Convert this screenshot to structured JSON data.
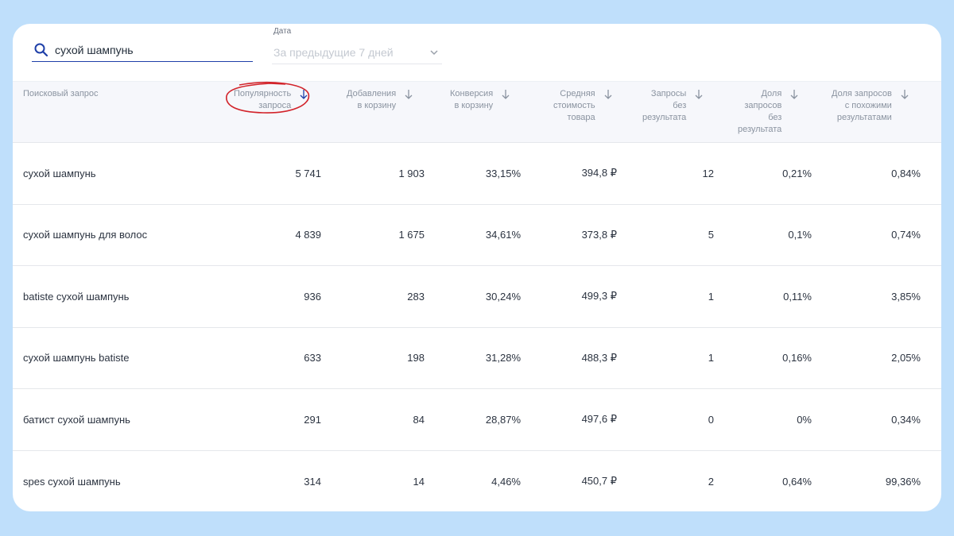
{
  "filters": {
    "search": {
      "value": "сухой шампунь"
    },
    "date": {
      "label": "Дата",
      "value": "За предыдущие 7 дней"
    }
  },
  "table": {
    "columns": [
      "Поисковый запрос",
      "Популярность\nзапроса",
      "Добавления\nв корзину",
      "Конверсия\nв корзину",
      "Средняя\nстоимость\nтовара",
      "Запросы\nбез\nрезультата",
      "Доля\nзапросов\nбез\nрезультата",
      "Доля запросов\nс похожими\nрезультатами"
    ],
    "sorted_column": 1,
    "rows": [
      [
        "сухой шампунь",
        "5 741",
        "1 903",
        "33,15%",
        "394,8 ₽",
        "12",
        "0,21%",
        "0,84%"
      ],
      [
        "сухой шампунь для волос",
        "4 839",
        "1 675",
        "34,61%",
        "373,8 ₽",
        "5",
        "0,1%",
        "0,74%"
      ],
      [
        "batiste сухой шампунь",
        "936",
        "283",
        "30,24%",
        "499,3 ₽",
        "1",
        "0,11%",
        "3,85%"
      ],
      [
        "сухой шампунь batiste",
        "633",
        "198",
        "31,28%",
        "488,3 ₽",
        "1",
        "0,16%",
        "2,05%"
      ],
      [
        "батист сухой шампунь",
        "291",
        "84",
        "28,87%",
        "497,6 ₽",
        "0",
        "0%",
        "0,34%"
      ],
      [
        "spes сухой шампунь",
        "314",
        "14",
        "4,46%",
        "450,7 ₽",
        "2",
        "0,64%",
        "99,36%"
      ]
    ]
  },
  "colors": {
    "accent": "#1e3fa8",
    "annotation": "#d2232a",
    "page_background": "#bfdffb"
  },
  "icons": {
    "search": "search-icon",
    "dropdown": "chevron-down-icon",
    "sort": "arrow-down-icon"
  }
}
